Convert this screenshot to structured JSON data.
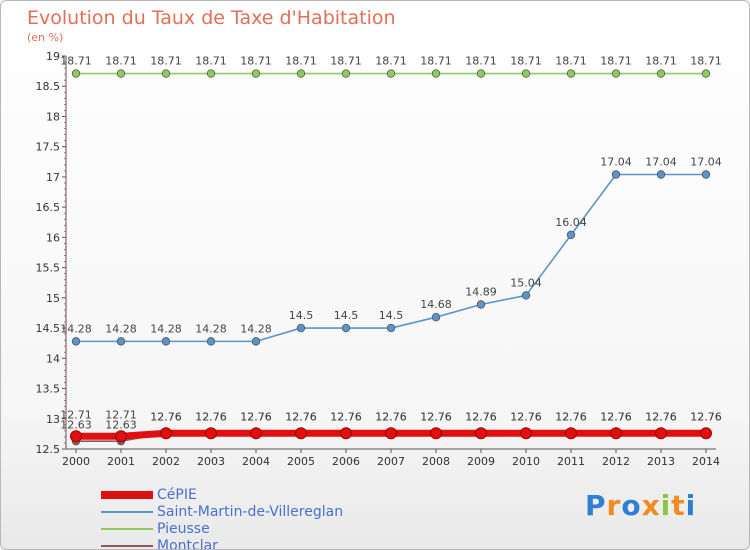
{
  "title": "Evolution du Taux de Taxe d'Habitation",
  "unit_label": "(en %)",
  "logo": {
    "letters": [
      "P",
      "r",
      "o",
      "x",
      "i",
      "t",
      "i"
    ],
    "colors": [
      "#2f7fd3",
      "#f28c1e",
      "#2f7fd3",
      "#f28c1e",
      "#8cc63f",
      "#f28c1e",
      "#2f7fd3"
    ]
  },
  "chart_data": {
    "type": "line",
    "x": [
      "2000",
      "2001",
      "2002",
      "2003",
      "2004",
      "2005",
      "2006",
      "2007",
      "2008",
      "2009",
      "2010",
      "2011",
      "2012",
      "2013",
      "2014"
    ],
    "ylim": [
      12.5,
      19
    ],
    "y_ticks": [
      "12.5",
      "13",
      "13.5",
      "14",
      "14.5",
      "15",
      "15.5",
      "16",
      "16.5",
      "17",
      "17.5",
      "18",
      "18.5",
      "19"
    ],
    "grid": false,
    "legend_position": "bottom-left",
    "series": [
      {
        "name": "CéPIE",
        "color": "#e01010",
        "values": [
          12.71,
          12.71,
          12.76,
          12.76,
          12.76,
          12.76,
          12.76,
          12.76,
          12.76,
          12.76,
          12.76,
          12.76,
          12.76,
          12.76,
          12.76
        ],
        "labels": [
          "12.71",
          "12.71",
          "12.76",
          "12.76",
          "12.76",
          "12.76",
          "12.76",
          "12.76",
          "12.76",
          "12.76",
          "12.76",
          "12.76",
          "12.76",
          "12.76",
          "12.76"
        ]
      },
      {
        "name": "Saint-Martin-de-Villereglan",
        "color": "#5b94c8",
        "values": [
          14.28,
          14.28,
          14.28,
          14.28,
          14.28,
          14.5,
          14.5,
          14.5,
          14.68,
          14.89,
          15.04,
          16.04,
          17.04,
          17.04,
          17.04
        ],
        "labels": [
          "14.28",
          "14.28",
          "14.28",
          "14.28",
          "14.28",
          "14.5",
          "14.5",
          "14.5",
          "14.68",
          "14.89",
          "15.04",
          "16.04",
          "17.04",
          "17.04",
          "17.04"
        ]
      },
      {
        "name": "Pieusse",
        "color": "#8dcc5a",
        "values": [
          18.71,
          18.71,
          18.71,
          18.71,
          18.71,
          18.71,
          18.71,
          18.71,
          18.71,
          18.71,
          18.71,
          18.71,
          18.71,
          18.71,
          18.71
        ],
        "labels": [
          "18.71",
          "18.71",
          "18.71",
          "18.71",
          "18.71",
          "18.71",
          "18.71",
          "18.71",
          "18.71",
          "18.71",
          "18.71",
          "18.71",
          "18.71",
          "18.71",
          "18.71"
        ]
      },
      {
        "name": "Montclar",
        "color": "#8a5a5a",
        "values": [
          12.63,
          12.63,
          12.76,
          12.76,
          12.76,
          12.76,
          12.76,
          12.76,
          12.76,
          12.76,
          12.76,
          12.76,
          12.76,
          12.76,
          12.76
        ],
        "labels": [
          "12.63",
          "12.63",
          "12.76",
          "12.76",
          "12.76",
          "12.76",
          "12.76",
          "12.76",
          "12.76",
          "12.76",
          "12.76",
          "12.76",
          "12.76",
          "12.76",
          "12.76"
        ]
      }
    ]
  }
}
